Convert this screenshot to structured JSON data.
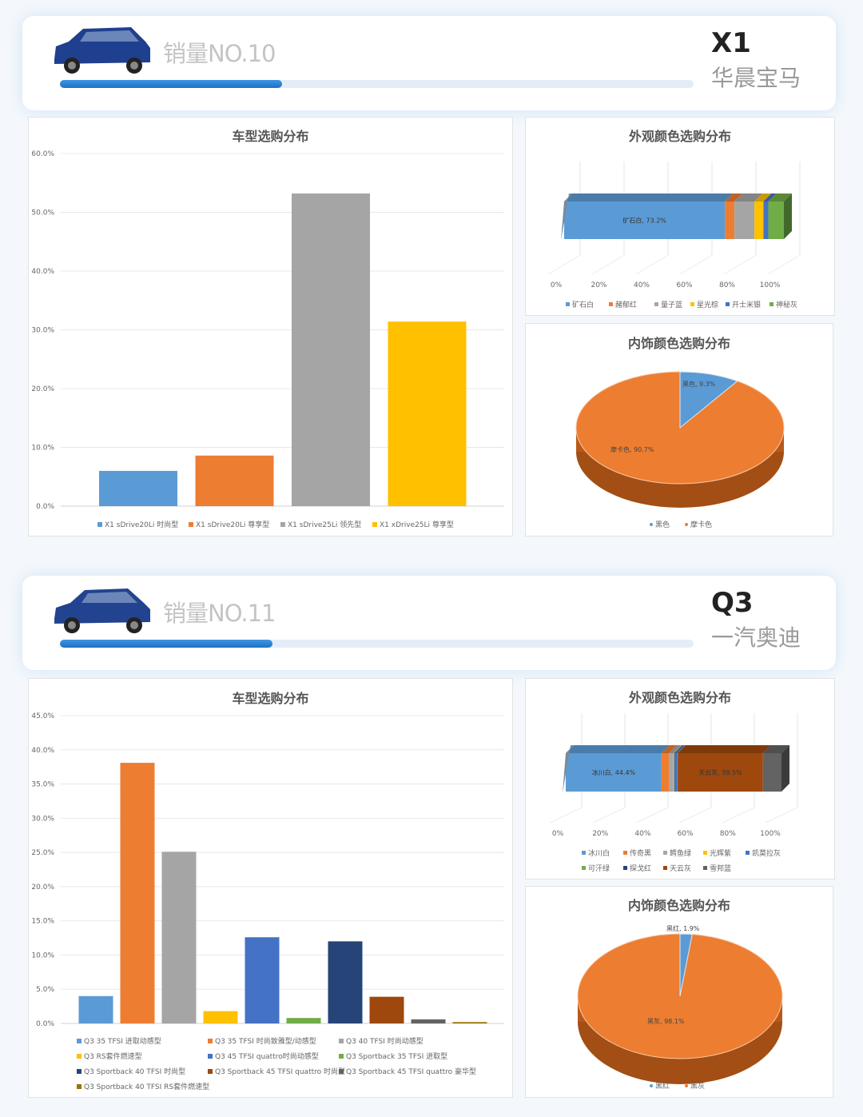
{
  "sections": [
    {
      "rank_label": "销量NO.10",
      "model": "X1",
      "brand": "华晨宝马",
      "progress": 0.35,
      "car_color": "#1f3f8f"
    },
    {
      "rank_label": "销量NO.11",
      "model": "Q3",
      "brand": "一汽奥迪",
      "progress": 0.336,
      "car_color": "#22438f"
    }
  ],
  "chart_data": [
    {
      "type": "bar",
      "title": "车型选购分布",
      "ylim": [
        0,
        60
      ],
      "yticks": [
        "0.0%",
        "10.0%",
        "20.0%",
        "30.0%",
        "40.0%",
        "50.0%",
        "60.0%"
      ],
      "grid": true,
      "legend": "bottom",
      "categories": [
        "X1 sDrive20Li 时尚型",
        "X1 sDrive20Li 尊享型",
        "X1 sDrive25Li 领先型",
        "X1 xDrive25Li 尊享型"
      ],
      "values": [
        6.0,
        8.6,
        53.2,
        31.4
      ],
      "colors": [
        "#5b9bd5",
        "#ed7d31",
        "#a5a5a5",
        "#ffc000"
      ]
    },
    {
      "type": "bar",
      "subtype": "3d-stacked-100",
      "title": "外观颜色选购分布",
      "xticks": [
        "0%",
        "20%",
        "40%",
        "60%",
        "80%",
        "100%"
      ],
      "legend": "bottom",
      "series": [
        {
          "name": "矿石白",
          "value": 73.2,
          "label": "矿石白, 73.2%",
          "color": "#5b9bd5"
        },
        {
          "name": "赭郁红",
          "value": 4.3,
          "color": "#ed7d31"
        },
        {
          "name": "量子蓝",
          "value": 9.1,
          "color": "#a5a5a5"
        },
        {
          "name": "星光棕",
          "value": 4.1,
          "color": "#ffc000"
        },
        {
          "name": "开士米银",
          "value": 2.2,
          "color": "#4472c4"
        },
        {
          "name": "神秘灰",
          "value": 7.1,
          "color": "#70ad47"
        }
      ]
    },
    {
      "type": "pie",
      "subtype": "3d",
      "title": "内饰颜色选购分布",
      "legend": "bottom",
      "slices": [
        {
          "name": "黑色",
          "value": 9.3,
          "label": "黑色, 9.3%",
          "color": "#5b9bd5"
        },
        {
          "name": "摩卡色",
          "value": 90.7,
          "label": "摩卡色, 90.7%",
          "color": "#ed7d31"
        }
      ]
    },
    {
      "type": "bar",
      "title": "车型选购分布",
      "ylim": [
        0,
        45
      ],
      "yticks": [
        "0.0%",
        "5.0%",
        "10.0%",
        "15.0%",
        "20.0%",
        "25.0%",
        "30.0%",
        "35.0%",
        "40.0%",
        "45.0%"
      ],
      "grid": true,
      "legend": "bottom",
      "categories": [
        "Q3 35 TFSI 进取动感型",
        "Q3 35 TFSI 时尚致雅型/动感型",
        "Q3 40 TFSI 时尚动感型",
        "Q3 RS套件燃速型",
        "Q3 45 TFSI quattro时尚动感型",
        "Q3 Sportback 35 TFSI 进取型",
        "Q3 Sportback 40 TFSI 时尚型",
        "Q3 Sportback 45 TFSI quattro 时尚型",
        "Q3 Sportback 45 TFSI quattro 豪华型",
        "Q3 Sportback 40 TFSI RS套件燃速型"
      ],
      "values": [
        4.0,
        38.1,
        25.1,
        1.8,
        12.6,
        0.8,
        12.0,
        3.9,
        0.6,
        0.2
      ],
      "colors": [
        "#5b9bd5",
        "#ed7d31",
        "#a5a5a5",
        "#ffc000",
        "#4472c4",
        "#70ad47",
        "#264478",
        "#9e480e",
        "#636363",
        "#997300"
      ]
    },
    {
      "type": "bar",
      "subtype": "3d-stacked-100",
      "title": "外观颜色选购分布",
      "xticks": [
        "0%",
        "20%",
        "40%",
        "60%",
        "80%",
        "100%"
      ],
      "legend": "bottom",
      "series": [
        {
          "name": "冰川白",
          "value": 44.4,
          "label": "冰川白, 44.4%",
          "color": "#5b9bd5"
        },
        {
          "name": "传奇黑",
          "value": 3.5,
          "color": "#ed7d31"
        },
        {
          "name": "鳄鱼绿",
          "value": 2.0,
          "color": "#a5a5a5"
        },
        {
          "name": "光辉紫",
          "value": 0.3,
          "color": "#ffc000"
        },
        {
          "name": "凯莫拉灰",
          "value": 1.5,
          "color": "#4472c4"
        },
        {
          "name": "可汗绿",
          "value": 0.1,
          "color": "#70ad47"
        },
        {
          "name": "探戈红",
          "value": 0.1,
          "color": "#264478"
        },
        {
          "name": "天云灰",
          "value": 39.5,
          "label": "天云灰, 39.5%",
          "color": "#9e480e"
        },
        {
          "name": "雪邦蓝",
          "value": 8.6,
          "color": "#636363"
        }
      ]
    },
    {
      "type": "pie",
      "subtype": "3d",
      "title": "内饰颜色选购分布",
      "legend": "bottom",
      "slices": [
        {
          "name": "黑红",
          "value": 1.9,
          "label": "黑红, 1.9%",
          "color": "#5b9bd5"
        },
        {
          "name": "黑灰",
          "value": 98.1,
          "label": "黑灰, 98.1%",
          "color": "#ed7d31"
        }
      ]
    }
  ]
}
